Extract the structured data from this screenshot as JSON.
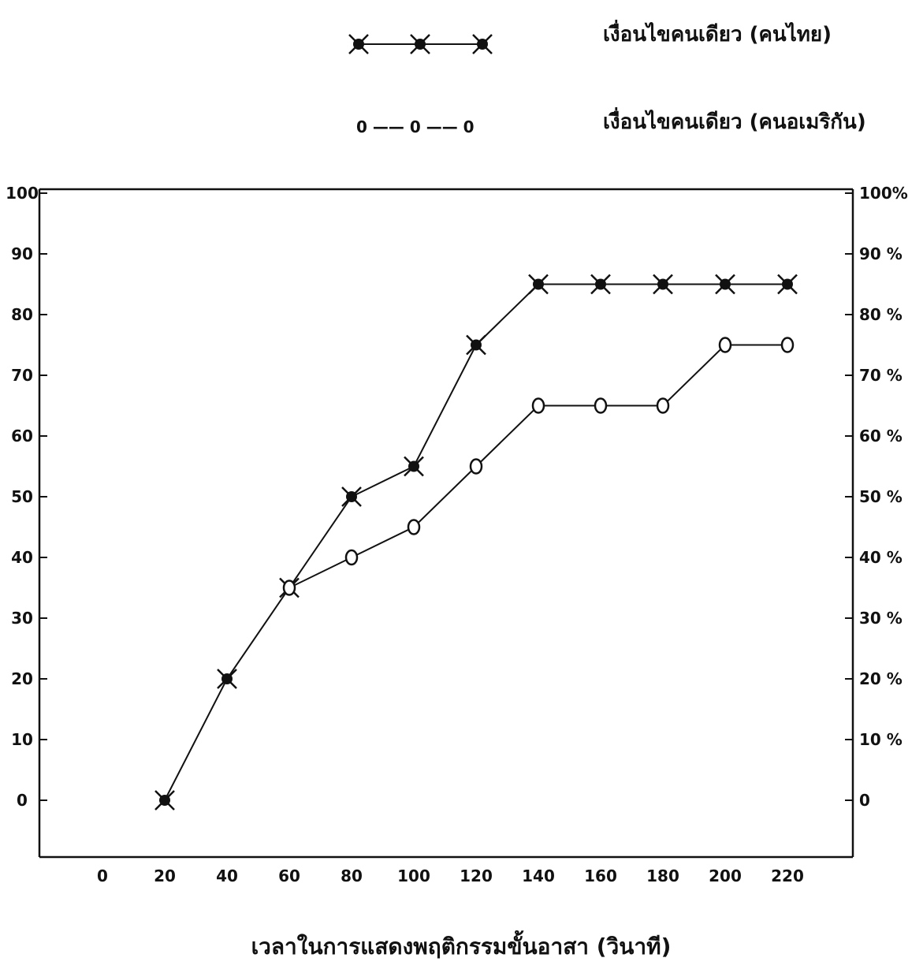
{
  "chart_data": {
    "type": "line",
    "title": "",
    "xlabel": "เวลาในการแสดงพฤติกรรมขั้นอาสา (วินาที)",
    "ylabel": "",
    "x_ticks": [
      0,
      20,
      40,
      60,
      80,
      100,
      120,
      140,
      160,
      180,
      200,
      220
    ],
    "y_ticks": [
      0,
      10,
      20,
      30,
      40,
      50,
      60,
      70,
      80,
      90,
      100
    ],
    "y_right_ticks": [
      "0",
      "10 %",
      "20 %",
      "30 %",
      "40 %",
      "50 %",
      "60 %",
      "70 %",
      "80 %",
      "90 %",
      "100%"
    ],
    "xlim": [
      -10,
      245
    ],
    "ylim": [
      -10,
      100
    ],
    "grid": false,
    "legend_position": "top-right",
    "legend_sample_cross": "",
    "legend_sample_circle": "0 —— 0 —— 0",
    "series": [
      {
        "name": "เงื่อนไขคนเดียว (คนไทย)",
        "marker": "cross",
        "x": [
          20,
          40,
          60,
          80,
          100,
          120,
          140,
          160,
          180,
          200,
          220
        ],
        "y": [
          0,
          20,
          35,
          50,
          55,
          75,
          85,
          85,
          85,
          85,
          85
        ]
      },
      {
        "name": "เงื่อนไขคนเดียว (คนอเมริกัน)",
        "marker": "circle",
        "x": [
          60,
          80,
          100,
          120,
          140,
          160,
          180,
          200,
          220
        ],
        "y": [
          35,
          40,
          45,
          55,
          65,
          65,
          65,
          75,
          75
        ]
      }
    ]
  }
}
